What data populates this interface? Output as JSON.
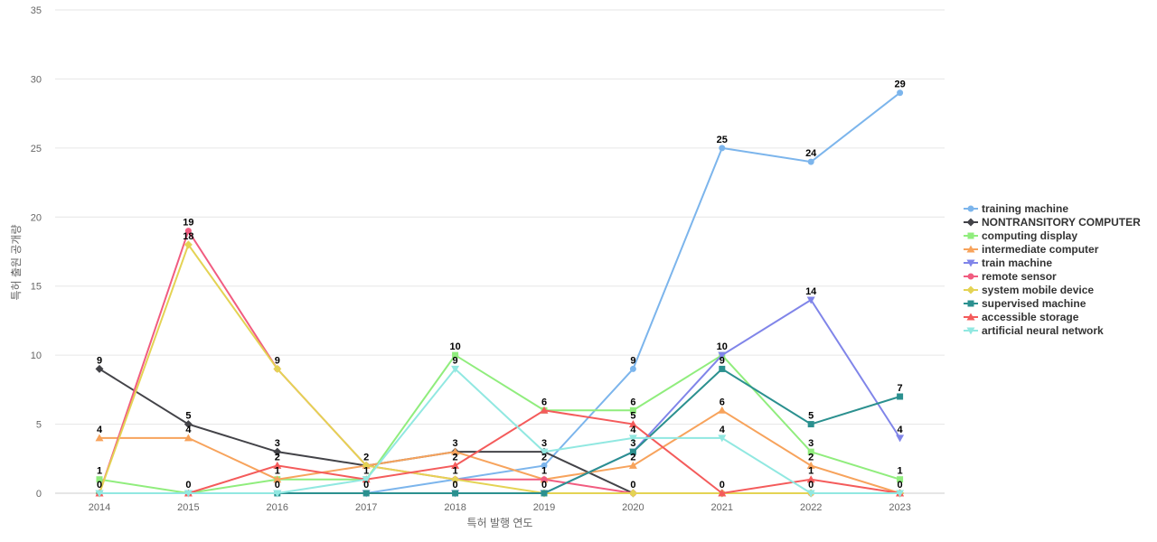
{
  "chart_data": {
    "type": "line",
    "title": "",
    "xlabel": "특허 발행 연도",
    "ylabel": "특허 출원 공개량",
    "x": [
      "2014",
      "2015",
      "2016",
      "2017",
      "2018",
      "2019",
      "2020",
      "2021",
      "2022",
      "2023"
    ],
    "ylim": [
      0,
      35
    ],
    "yticks": [
      "0",
      "5",
      "10",
      "15",
      "20",
      "25",
      "30",
      "35"
    ],
    "grid": true,
    "legend_position": "right",
    "series": [
      {
        "name": "training machine",
        "color": "#7cb5ec",
        "marker": "circle",
        "values": [
          0,
          0,
          0,
          0,
          1,
          2,
          9,
          25,
          24,
          29
        ]
      },
      {
        "name": "NONTRANSITORY COMPUTER",
        "color": "#434348",
        "marker": "diamond",
        "values": [
          9,
          5,
          3,
          2,
          3,
          3,
          0,
          0,
          0,
          0
        ]
      },
      {
        "name": "computing display",
        "color": "#90ed7d",
        "marker": "square",
        "values": [
          1,
          0,
          1,
          1,
          10,
          6,
          6,
          10,
          3,
          1
        ]
      },
      {
        "name": "intermediate computer",
        "color": "#f7a35c",
        "marker": "triangle",
        "values": [
          4,
          4,
          1,
          2,
          3,
          1,
          2,
          6,
          2,
          0
        ]
      },
      {
        "name": "train machine",
        "color": "#8085e9",
        "marker": "triangle-down",
        "values": [
          0,
          0,
          0,
          0,
          0,
          0,
          3,
          10,
          14,
          4
        ]
      },
      {
        "name": "remote sensor",
        "color": "#f15c80",
        "marker": "circle",
        "values": [
          0,
          19,
          9,
          2,
          1,
          1,
          0,
          0,
          0,
          0
        ]
      },
      {
        "name": "system mobile device",
        "color": "#e4d354",
        "marker": "diamond",
        "values": [
          0,
          18,
          9,
          2,
          1,
          0,
          0,
          0,
          0,
          0
        ]
      },
      {
        "name": "supervised machine",
        "color": "#2b908f",
        "marker": "square",
        "values": [
          0,
          0,
          0,
          0,
          0,
          0,
          3,
          9,
          5,
          7
        ]
      },
      {
        "name": "accessible storage",
        "color": "#f45b5b",
        "marker": "triangle",
        "values": [
          0,
          0,
          2,
          1,
          2,
          6,
          5,
          0,
          1,
          0
        ]
      },
      {
        "name": "artificial neural network",
        "color": "#91e8e1",
        "marker": "triangle-down",
        "values": [
          0,
          0,
          0,
          1,
          9,
          3,
          4,
          4,
          0,
          0
        ]
      }
    ],
    "point_labels": [
      {
        "x": "2014",
        "value": 9
      },
      {
        "x": "2014",
        "value": 4
      },
      {
        "x": "2014",
        "value": 1
      },
      {
        "x": "2014",
        "value": 0
      },
      {
        "x": "2015",
        "value": 19
      },
      {
        "x": "2015",
        "value": 18
      },
      {
        "x": "2015",
        "value": 5
      },
      {
        "x": "2015",
        "value": 4
      },
      {
        "x": "2015",
        "value": 0
      },
      {
        "x": "2016",
        "value": 9
      },
      {
        "x": "2016",
        "value": 3
      },
      {
        "x": "2016",
        "value": 2
      },
      {
        "x": "2016",
        "value": 1
      },
      {
        "x": "2016",
        "value": 0
      },
      {
        "x": "2017",
        "value": 2
      },
      {
        "x": "2017",
        "value": 1
      },
      {
        "x": "2017",
        "value": 0
      },
      {
        "x": "2018",
        "value": 10
      },
      {
        "x": "2018",
        "value": 9
      },
      {
        "x": "2018",
        "value": 3
      },
      {
        "x": "2018",
        "value": 2
      },
      {
        "x": "2018",
        "value": 1
      },
      {
        "x": "2018",
        "value": 0
      },
      {
        "x": "2019",
        "value": 6
      },
      {
        "x": "2019",
        "value": 3
      },
      {
        "x": "2019",
        "value": 2
      },
      {
        "x": "2019",
        "value": 1
      },
      {
        "x": "2019",
        "value": 0
      },
      {
        "x": "2020",
        "value": 9
      },
      {
        "x": "2020",
        "value": 6
      },
      {
        "x": "2020",
        "value": 5
      },
      {
        "x": "2020",
        "value": 4
      },
      {
        "x": "2020",
        "value": 3
      },
      {
        "x": "2020",
        "value": 2
      },
      {
        "x": "2020",
        "value": 0
      },
      {
        "x": "2021",
        "value": 25
      },
      {
        "x": "2021",
        "value": 10
      },
      {
        "x": "2021",
        "value": 9
      },
      {
        "x": "2021",
        "value": 6
      },
      {
        "x": "2021",
        "value": 4
      },
      {
        "x": "2021",
        "value": 0
      },
      {
        "x": "2022",
        "value": 24
      },
      {
        "x": "2022",
        "value": 14
      },
      {
        "x": "2022",
        "value": 5
      },
      {
        "x": "2022",
        "value": 3
      },
      {
        "x": "2022",
        "value": 2
      },
      {
        "x": "2022",
        "value": 1
      },
      {
        "x": "2022",
        "value": 0
      },
      {
        "x": "2023",
        "value": 29
      },
      {
        "x": "2023",
        "value": 7
      },
      {
        "x": "2023",
        "value": 4
      },
      {
        "x": "2023",
        "value": 1
      },
      {
        "x": "2023",
        "value": 0
      }
    ]
  }
}
